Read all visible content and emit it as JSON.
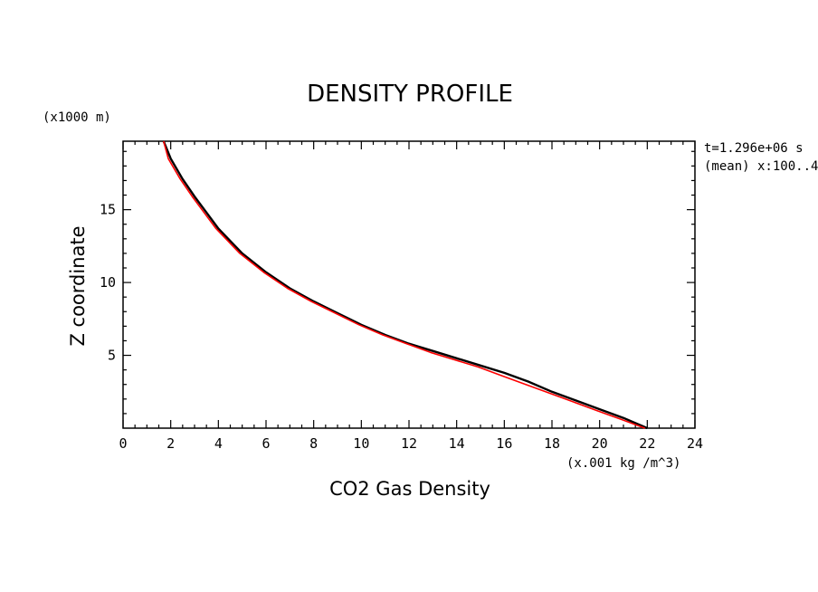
{
  "chart_data": {
    "type": "line",
    "title": "DENSITY PROFILE",
    "xlabel": "CO2 Gas Density",
    "ylabel": "Z coordinate",
    "x_unit": "(x.001 kg /m^3)",
    "y_unit": "(x1000 m)",
    "xlim": [
      0,
      24
    ],
    "ylim": [
      0,
      19.7
    ],
    "x_ticks": [
      0,
      2,
      4,
      6,
      8,
      10,
      12,
      14,
      16,
      18,
      20,
      22,
      24
    ],
    "y_ticks": [
      5,
      10,
      15
    ],
    "grid": false,
    "annotations": [
      "t=1.296e+06 s",
      "(mean) x:100..4"
    ],
    "series": [
      {
        "color": "#000000",
        "x": [
          22.0,
          21.0,
          20.0,
          19.0,
          18.0,
          17.0,
          16.0,
          15.0,
          14.0,
          13.0,
          12.0,
          11.0,
          10.0,
          9.0,
          8.0,
          7.0,
          6.0,
          5.0,
          4.0,
          3.5,
          3.0,
          2.5,
          2.0,
          1.7
        ],
        "y": [
          0.0,
          0.7,
          1.3,
          1.9,
          2.5,
          3.2,
          3.8,
          4.3,
          4.8,
          5.3,
          5.8,
          6.4,
          7.1,
          7.9,
          8.7,
          9.6,
          10.7,
          12.0,
          13.7,
          14.8,
          15.9,
          17.1,
          18.5,
          19.7
        ]
      },
      {
        "color": "#ff0000",
        "x": [
          21.9,
          20.9,
          19.9,
          18.9,
          17.9,
          16.9,
          15.9,
          14.9,
          13.9,
          12.9,
          11.9,
          10.9,
          9.9,
          8.9,
          7.9,
          6.9,
          5.9,
          4.9,
          3.9,
          3.4,
          2.9,
          2.4,
          1.9,
          1.7
        ],
        "y": [
          0.0,
          0.6,
          1.2,
          1.8,
          2.4,
          3.0,
          3.6,
          4.2,
          4.7,
          5.2,
          5.8,
          6.4,
          7.1,
          7.9,
          8.7,
          9.6,
          10.7,
          12.0,
          13.7,
          14.8,
          15.9,
          17.1,
          18.5,
          19.7
        ]
      }
    ]
  }
}
